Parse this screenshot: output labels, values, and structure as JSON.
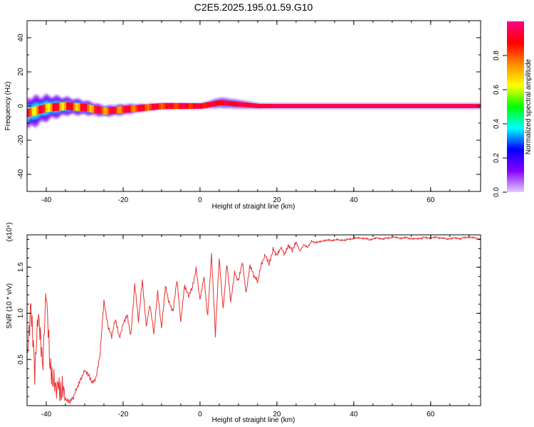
{
  "title": "C2E5.2025.195.01.59.G10",
  "chart_data": [
    {
      "type": "heatmap",
      "xlabel": "Height of straight line (km)",
      "ylabel": "Frequency (Hz)",
      "xlim": [
        -45,
        73
      ],
      "ylim": [
        -50,
        50
      ],
      "xticks": [
        -40,
        -20,
        0,
        20,
        40,
        60
      ],
      "yticks": [
        -40,
        -20,
        0,
        20,
        40
      ],
      "colorbar": {
        "label": "Normalized spectral amplitude",
        "range": [
          0,
          1
        ],
        "ticks": [
          0.0,
          0.2,
          0.4,
          0.6,
          0.8
        ],
        "tick_labels": [
          "0.0",
          "0.2",
          "0.4",
          "0.6",
          "0.8"
        ],
        "colors": [
          "#e0ccff",
          "#8800ff",
          "#0000ff",
          "#00ffff",
          "#00ff00",
          "#ffff00",
          "#ff8800",
          "#ff0000",
          "#ff0088"
        ]
      },
      "ridge": [
        {
          "x": -45,
          "freq": -4,
          "spread": 9
        },
        {
          "x": -40,
          "freq": -1,
          "spread": 7
        },
        {
          "x": -35,
          "freq": 0,
          "spread": 5
        },
        {
          "x": -30,
          "freq": -1,
          "spread": 4
        },
        {
          "x": -25,
          "freq": -3,
          "spread": 3
        },
        {
          "x": -20,
          "freq": -2,
          "spread": 3
        },
        {
          "x": -15,
          "freq": -1,
          "spread": 2
        },
        {
          "x": -10,
          "freq": 0,
          "spread": 1.5
        },
        {
          "x": 0,
          "freq": 0,
          "spread": 1.5
        },
        {
          "x": 5,
          "freq": 2,
          "spread": 3
        },
        {
          "x": 10,
          "freq": 1,
          "spread": 2.5
        },
        {
          "x": 15,
          "freq": 0,
          "spread": 1.5
        },
        {
          "x": 73,
          "freq": 0,
          "spread": 1.5
        }
      ],
      "peak_amplitude": 0.95,
      "grid": false
    },
    {
      "type": "line",
      "xlabel": "Height of straight line (km)",
      "ylabel": "SNR (10 * v/v)",
      "y_multiplier": "(x10⁴)",
      "xlim": [
        -45,
        73
      ],
      "ylim": [
        0,
        1.85
      ],
      "xticks": [
        -40,
        -20,
        0,
        20,
        40,
        60
      ],
      "yticks": [
        0.5,
        1.0,
        1.5
      ],
      "ytick_labels": [
        "0.5",
        "1.0",
        "1.5"
      ],
      "color": "#e83030",
      "grid": false,
      "series": [
        {
          "x": [
            -45,
            -44,
            -43,
            -42,
            -41,
            -40,
            -39,
            -38,
            -37,
            -36,
            -35,
            -34,
            -33,
            -32,
            -31,
            -30,
            -29,
            -28,
            -27,
            -26,
            -25,
            -24,
            -23,
            -22,
            -21,
            -20,
            -19,
            -18,
            -17,
            -16,
            -15,
            -14,
            -13,
            -12,
            -11,
            -10,
            -9,
            -8,
            -7,
            -6,
            -5,
            -4,
            -3,
            -2,
            -1,
            0,
            1,
            2,
            3,
            4,
            5,
            6,
            7,
            8,
            9,
            10,
            11,
            12,
            13,
            14,
            15,
            16,
            17,
            18,
            19,
            20,
            21,
            22,
            23,
            24,
            25,
            26,
            27,
            28,
            29,
            30,
            32,
            34,
            36,
            38,
            40,
            42,
            44,
            46,
            48,
            50,
            52,
            54,
            56,
            58,
            60,
            62,
            64,
            66,
            68,
            70,
            72,
            73
          ],
          "y": [
            0.4,
            0.95,
            0.3,
            1.0,
            0.45,
            1.35,
            0.55,
            0.3,
            0.2,
            0.1,
            0.05,
            0.02,
            0.08,
            0.2,
            0.3,
            0.4,
            0.35,
            0.25,
            0.3,
            0.55,
            1.12,
            0.85,
            0.75,
            0.95,
            0.75,
            0.9,
            1.0,
            0.75,
            1.3,
            0.9,
            1.35,
            0.85,
            1.1,
            0.8,
            1.25,
            0.85,
            1.3,
            1.1,
            1.0,
            1.35,
            0.9,
            1.3,
            1.2,
            1.3,
            1.5,
            1.15,
            1.4,
            0.95,
            1.62,
            0.75,
            1.6,
            1.05,
            1.55,
            1.15,
            1.45,
            1.35,
            1.55,
            1.2,
            1.5,
            1.4,
            1.35,
            1.55,
            1.65,
            1.55,
            1.7,
            1.62,
            1.7,
            1.62,
            1.72,
            1.68,
            1.78,
            1.68,
            1.75,
            1.72,
            1.78,
            1.76,
            1.78,
            1.79,
            1.8,
            1.8,
            1.81,
            1.81,
            1.8,
            1.82,
            1.81,
            1.82,
            1.81,
            1.82,
            1.81,
            1.82,
            1.81,
            1.82,
            1.81,
            1.82,
            1.81,
            1.82,
            1.81,
            1.81
          ]
        }
      ]
    }
  ]
}
